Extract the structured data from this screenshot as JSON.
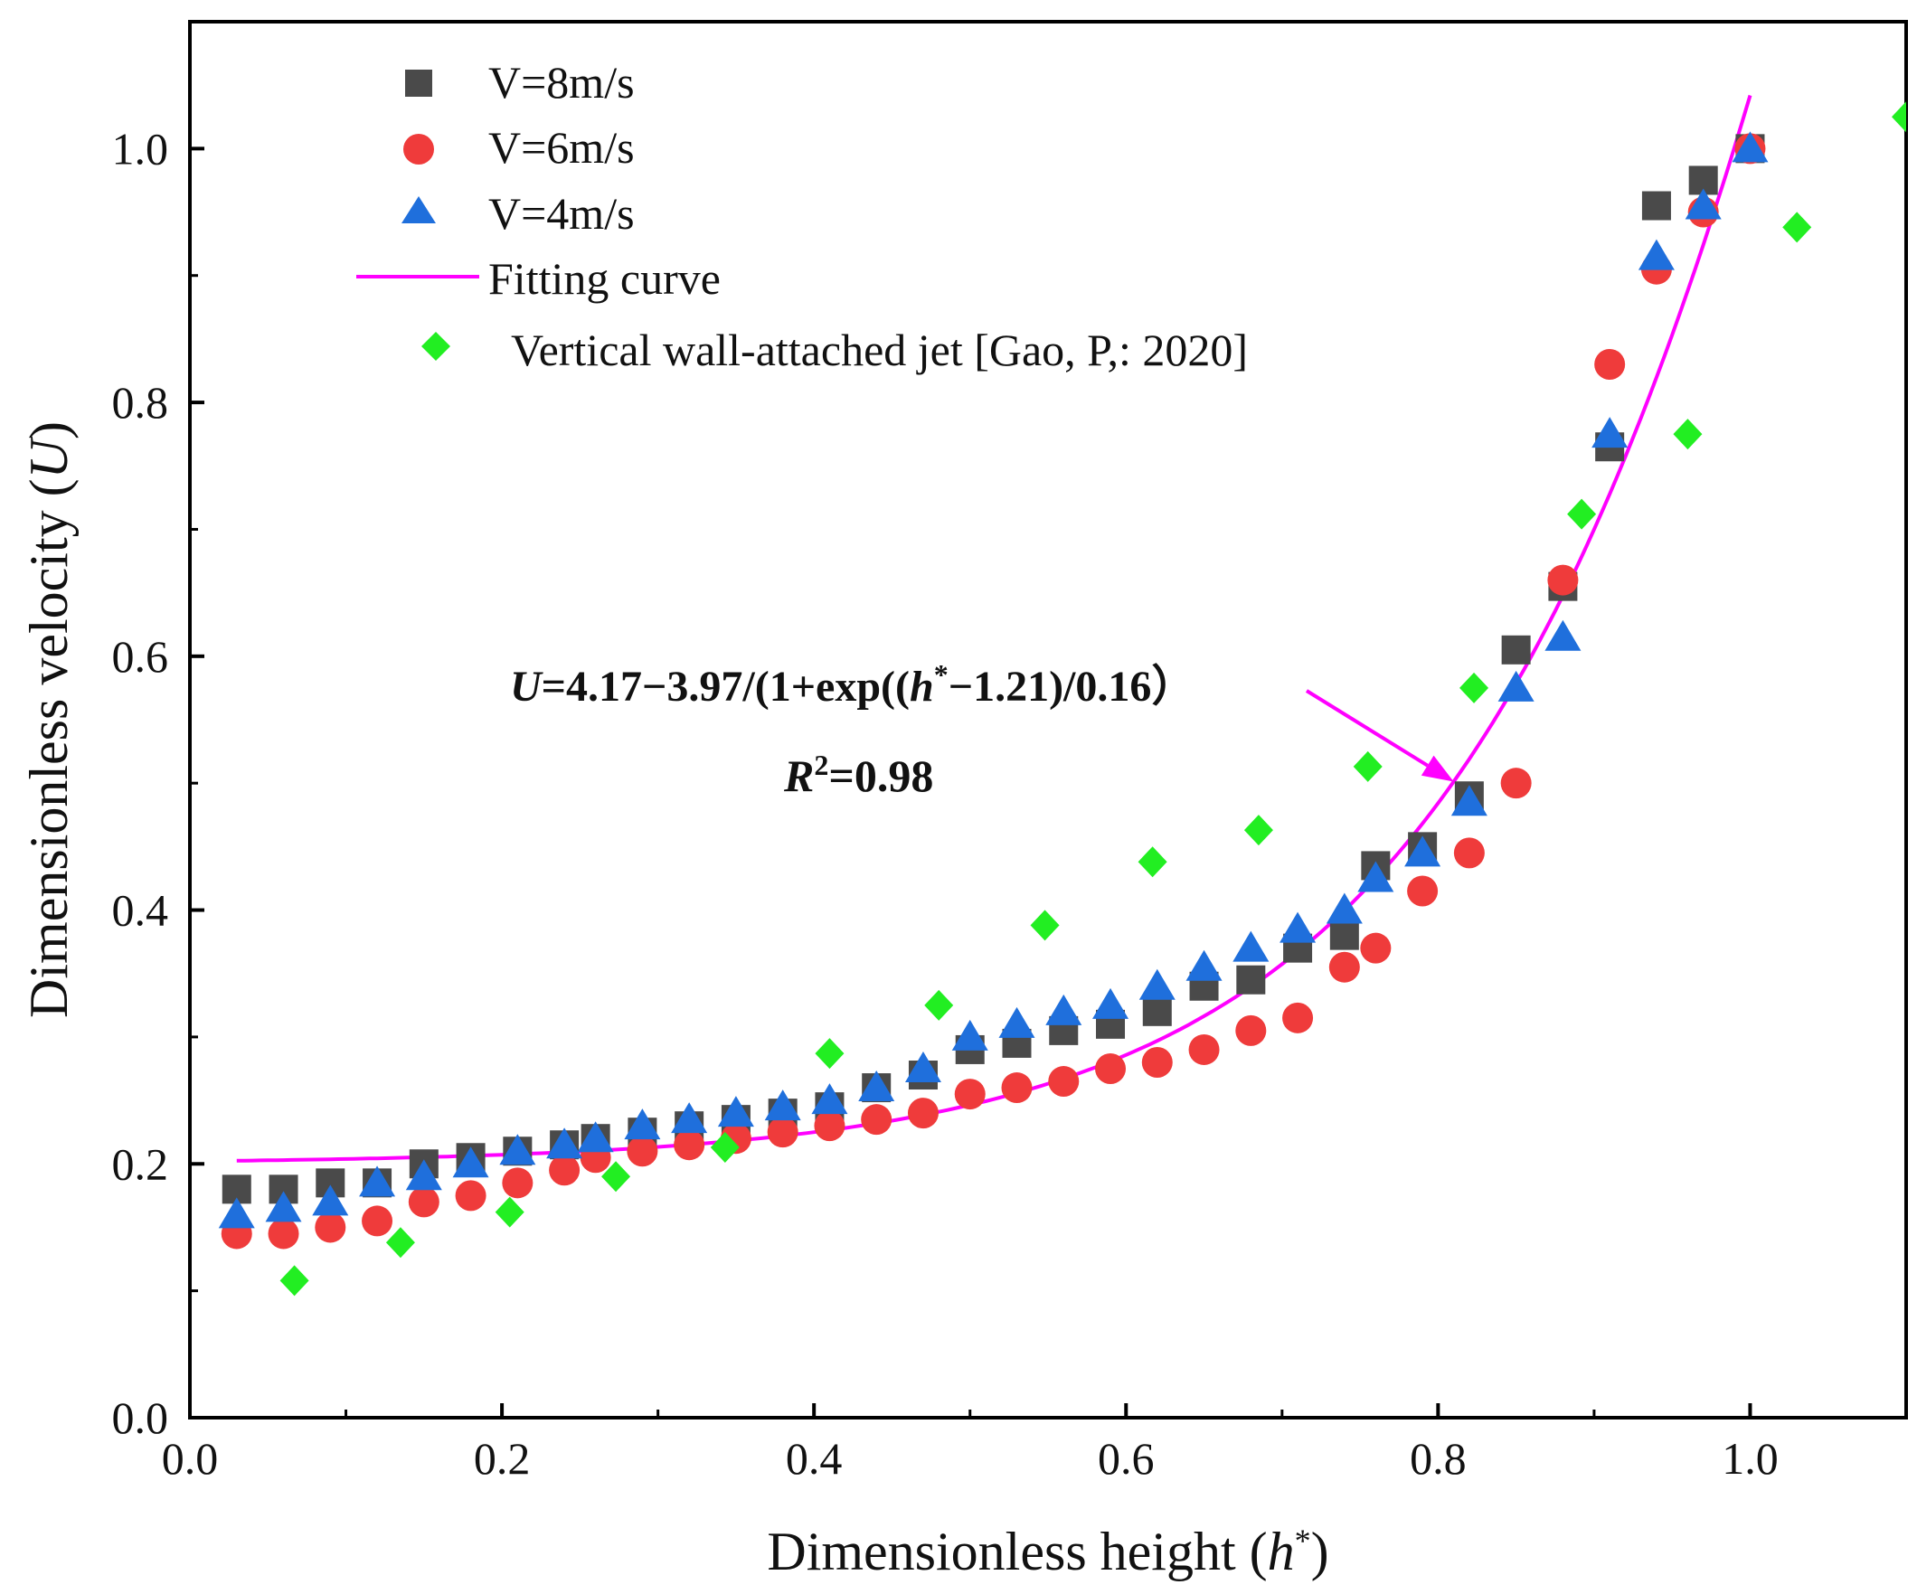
{
  "chart_data": {
    "type": "scatter",
    "title": "",
    "xlabel_prefix": "Dimensionless height (",
    "xlabel_symbol": "h",
    "xlabel_sup": "*",
    "xlabel_suffix": ")",
    "ylabel_prefix": "Dimensionless velocity (",
    "ylabel_symbol": "U",
    "ylabel_suffix": ")",
    "xlim": [
      0.0,
      1.1
    ],
    "ylim": [
      0.0,
      1.1
    ],
    "xticks": [
      0.0,
      0.2,
      0.4,
      0.6,
      0.8,
      1.0
    ],
    "xtick_labels": [
      "0.0",
      "0.2",
      "0.4",
      "0.6",
      "0.8",
      "1.0"
    ],
    "yticks": [
      0.0,
      0.2,
      0.4,
      0.6,
      0.8,
      1.0
    ],
    "ytick_labels": [
      "0.0",
      "0.2",
      "0.4",
      "0.6",
      "0.8",
      "1.0"
    ],
    "grid": false,
    "legend_position": "top-left",
    "series": [
      {
        "name": "V=8m/s",
        "marker": "square",
        "color": "#4a4a4a",
        "x": [
          0.03,
          0.06,
          0.09,
          0.12,
          0.15,
          0.18,
          0.21,
          0.24,
          0.26,
          0.29,
          0.32,
          0.35,
          0.38,
          0.41,
          0.44,
          0.47,
          0.5,
          0.53,
          0.56,
          0.59,
          0.62,
          0.65,
          0.68,
          0.71,
          0.74,
          0.76,
          0.79,
          0.82,
          0.85,
          0.88,
          0.91,
          0.94,
          0.97,
          1.0
        ],
        "y": [
          0.18,
          0.18,
          0.185,
          0.185,
          0.2,
          0.205,
          0.21,
          0.215,
          0.22,
          0.225,
          0.23,
          0.235,
          0.24,
          0.245,
          0.26,
          0.27,
          0.29,
          0.295,
          0.305,
          0.31,
          0.32,
          0.34,
          0.345,
          0.37,
          0.38,
          0.435,
          0.45,
          0.49,
          0.605,
          0.655,
          0.765,
          0.955,
          0.975,
          1.0
        ]
      },
      {
        "name": "V=6m/s",
        "marker": "circle",
        "color": "#ef3b3b",
        "x": [
          0.03,
          0.06,
          0.09,
          0.12,
          0.15,
          0.18,
          0.21,
          0.24,
          0.26,
          0.29,
          0.32,
          0.35,
          0.38,
          0.41,
          0.44,
          0.47,
          0.5,
          0.53,
          0.56,
          0.59,
          0.62,
          0.65,
          0.68,
          0.71,
          0.74,
          0.76,
          0.79,
          0.82,
          0.85,
          0.88,
          0.91,
          0.94,
          0.97,
          1.0
        ],
        "y": [
          0.145,
          0.145,
          0.15,
          0.155,
          0.17,
          0.175,
          0.185,
          0.195,
          0.205,
          0.21,
          0.215,
          0.22,
          0.225,
          0.23,
          0.235,
          0.24,
          0.255,
          0.26,
          0.265,
          0.275,
          0.28,
          0.29,
          0.305,
          0.315,
          0.355,
          0.37,
          0.415,
          0.445,
          0.5,
          0.66,
          0.83,
          0.905,
          0.95,
          1.0
        ]
      },
      {
        "name": "V=4m/s",
        "marker": "triangle",
        "color": "#1f6fdc",
        "x": [
          0.03,
          0.06,
          0.09,
          0.12,
          0.15,
          0.18,
          0.21,
          0.24,
          0.26,
          0.29,
          0.32,
          0.35,
          0.38,
          0.41,
          0.44,
          0.47,
          0.5,
          0.53,
          0.56,
          0.59,
          0.62,
          0.65,
          0.68,
          0.71,
          0.74,
          0.76,
          0.79,
          0.82,
          0.85,
          0.88,
          0.91,
          0.94,
          0.97,
          1.0
        ],
        "y": [
          0.16,
          0.165,
          0.17,
          0.185,
          0.19,
          0.2,
          0.21,
          0.215,
          0.22,
          0.23,
          0.235,
          0.24,
          0.245,
          0.25,
          0.26,
          0.275,
          0.3,
          0.31,
          0.32,
          0.325,
          0.34,
          0.355,
          0.37,
          0.385,
          0.4,
          0.425,
          0.445,
          0.485,
          0.575,
          0.615,
          0.775,
          0.915,
          0.955,
          1.0
        ]
      },
      {
        "name": "Vertical wall-attached jet [Gao, P,: 2020]",
        "marker": "diamond",
        "color": "#22ee22",
        "x": [
          0.067,
          0.135,
          0.205,
          0.273,
          0.343,
          0.41,
          0.48,
          0.548,
          0.617,
          0.685,
          0.755,
          0.823,
          0.892,
          0.96,
          1.03,
          1.1
        ],
        "y": [
          0.108,
          0.138,
          0.162,
          0.19,
          0.213,
          0.287,
          0.325,
          0.388,
          0.438,
          0.463,
          0.513,
          0.575,
          0.712,
          0.775,
          0.938,
          1.025
        ]
      }
    ],
    "fit_curve": {
      "name": "Fitting curve",
      "color": "#ff00ff",
      "a": 4.17,
      "b": 3.97,
      "c": 1.21,
      "d": 0.16,
      "x_range": [
        0.03,
        1.0
      ]
    },
    "annotation": {
      "eq_U": "U",
      "eq_part1": "=4.17−3.97/(1+exp((",
      "eq_h": "h",
      "eq_sup": "*",
      "eq_part2": "−1.21)/0.16）",
      "r2_R": "R",
      "r2_sup": "2",
      "r2_val": "=0.98",
      "arrow_target_x": 0.81
    }
  }
}
